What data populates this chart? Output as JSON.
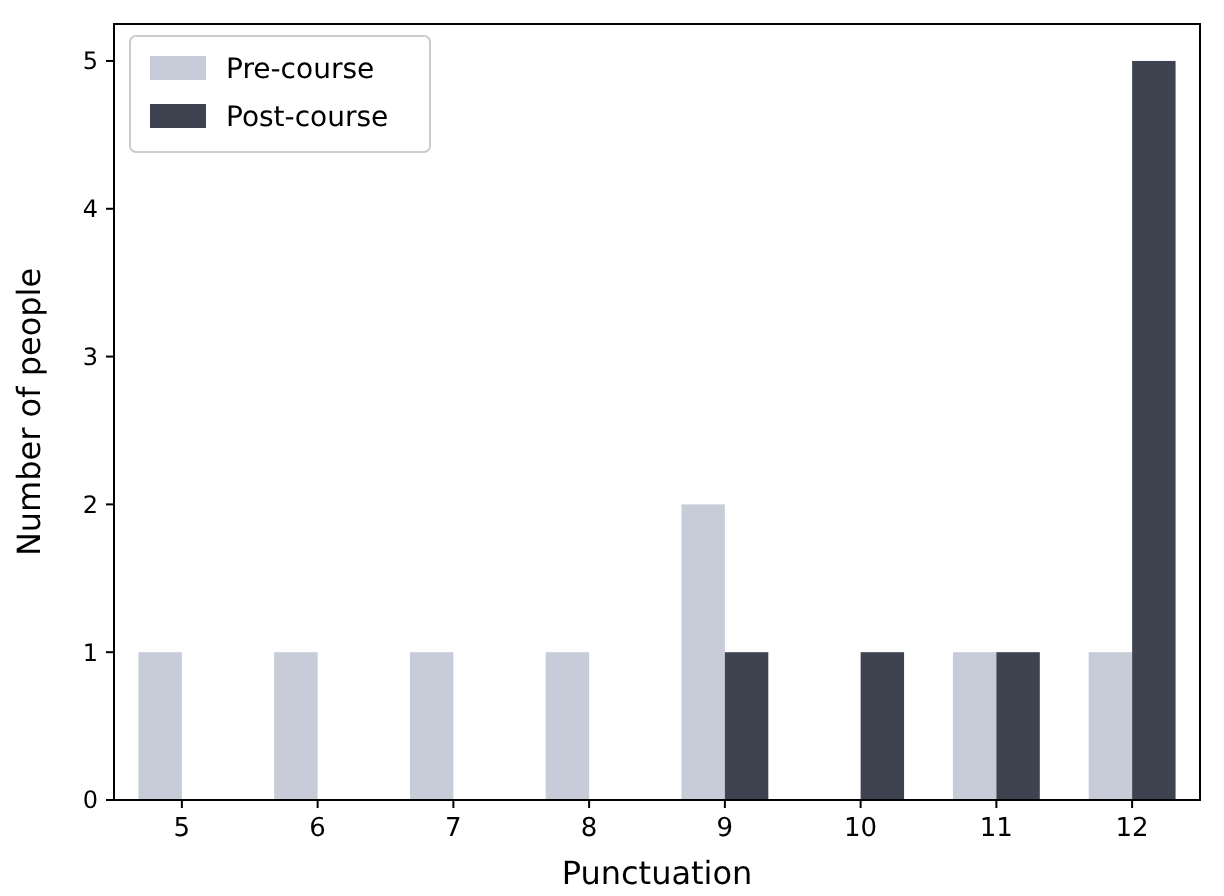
{
  "chart_data": {
    "type": "bar",
    "xlabel": "Punctuation",
    "ylabel": "Number of people",
    "categories": [
      "5",
      "6",
      "7",
      "8",
      "9",
      "10",
      "11",
      "12"
    ],
    "series": [
      {
        "name": "Pre-course",
        "color": "#c8ccd9",
        "values": [
          1,
          1,
          1,
          1,
          2,
          0,
          1,
          1
        ]
      },
      {
        "name": "Post-course",
        "color": "#3d444f",
        "values": [
          0,
          0,
          0,
          0,
          1,
          1,
          1,
          5
        ]
      }
    ],
    "ylim": [
      0,
      5.25
    ],
    "yticks": [
      0,
      1,
      2,
      3,
      4,
      5
    ],
    "grid": false,
    "legend": "top left"
  }
}
